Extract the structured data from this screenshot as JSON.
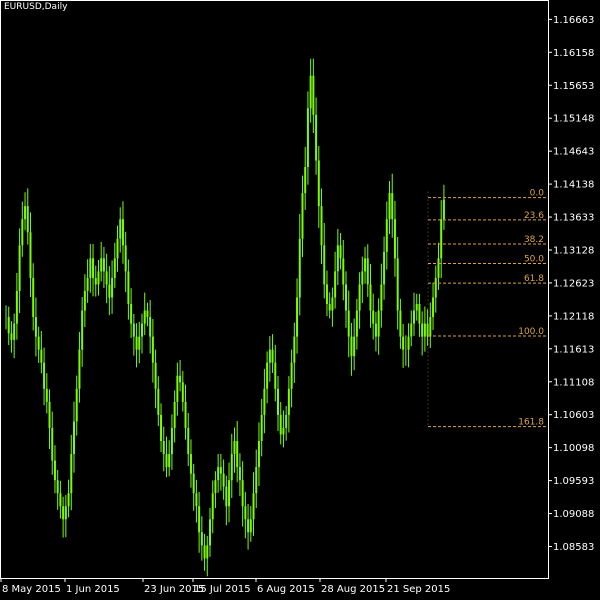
{
  "window": {
    "title": "EURUSD,Daily"
  },
  "theme": {
    "background": "#000000",
    "candle_color": "#7CFC00",
    "axis_color": "#ffffff",
    "fib_color": "#D9A441",
    "text_color": "#ffffff"
  },
  "chart_data": {
    "type": "candlestick",
    "title": "EURUSD,Daily",
    "y_ticks": [
      1.16663,
      1.16158,
      1.15653,
      1.15148,
      1.14643,
      1.14138,
      1.13633,
      1.13128,
      1.12623,
      1.12118,
      1.11613,
      1.11108,
      1.10603,
      1.10098,
      1.09593,
      1.09088,
      1.08583
    ],
    "y_tick_labels": [
      "1.16663",
      "1.16158",
      "1.15653",
      "1.15148",
      "1.14643",
      "1.14138",
      "1.13633",
      "1.13128",
      "1.12623",
      "1.12118",
      "1.11613",
      "1.11108",
      "1.10603",
      "1.10098",
      "1.09593",
      "1.09088",
      "1.08583"
    ],
    "x_tick_labels": [
      "8 May 2015",
      "1 Jun 2015",
      "23 Jun 2015",
      "15 Jul 2015",
      "6 Aug 2015",
      "28 Aug 2015",
      "21 Sep 2015"
    ],
    "ylim": [
      1.081,
      1.1696
    ],
    "fibonacci_levels": [
      {
        "label": "0.0",
        "price": 1.1393
      },
      {
        "label": "23.6",
        "price": 1.1359
      },
      {
        "label": "38.2",
        "price": 1.1322
      },
      {
        "label": "50.0",
        "price": 1.1292
      },
      {
        "label": "61.8",
        "price": 1.1262
      },
      {
        "label": "100.0",
        "price": 1.1181
      },
      {
        "label": "161.8",
        "price": 1.1042
      }
    ],
    "series": [
      {
        "close": [
          1.121,
          1.1185,
          1.1175,
          1.12,
          1.125,
          1.132,
          1.136,
          1.138,
          1.134,
          1.127,
          1.121,
          1.118,
          1.116,
          1.114,
          1.11,
          1.108,
          1.104,
          1.099,
          1.096,
          1.094,
          1.092,
          1.09,
          1.092,
          1.094,
          1.1,
          1.105,
          1.11,
          1.116,
          1.122,
          1.125,
          1.127,
          1.13,
          1.127,
          1.126,
          1.128,
          1.13,
          1.128,
          1.126,
          1.124,
          1.127,
          1.13,
          1.133,
          1.136,
          1.132,
          1.128,
          1.123,
          1.12,
          1.118,
          1.116,
          1.118,
          1.12,
          1.122,
          1.121,
          1.118,
          1.114,
          1.11,
          1.106,
          1.102,
          1.1,
          1.098,
          1.1,
          1.104,
          1.108,
          1.112,
          1.111,
          1.108,
          1.104,
          1.1,
          1.097,
          1.094,
          1.092,
          1.088,
          1.086,
          1.084,
          1.086,
          1.09,
          1.094,
          1.096,
          1.098,
          1.097,
          1.095,
          1.092,
          1.096,
          1.1,
          1.102,
          1.098,
          1.096,
          1.092,
          1.09,
          1.088,
          1.09,
          1.094,
          1.098,
          1.102,
          1.106,
          1.11,
          1.114,
          1.116,
          1.114,
          1.11,
          1.106,
          1.103,
          1.104,
          1.106,
          1.11,
          1.114,
          1.118,
          1.124,
          1.133,
          1.14,
          1.144,
          1.153,
          1.158,
          1.152,
          1.145,
          1.138,
          1.132,
          1.126,
          1.123,
          1.122,
          1.124,
          1.128,
          1.132,
          1.13,
          1.126,
          1.122,
          1.118,
          1.115,
          1.118,
          1.122,
          1.126,
          1.128,
          1.13,
          1.126,
          1.122,
          1.12,
          1.118,
          1.122,
          1.126,
          1.131,
          1.136,
          1.14,
          1.136,
          1.13,
          1.122,
          1.118,
          1.116,
          1.116,
          1.118,
          1.12,
          1.122,
          1.123,
          1.12,
          1.118,
          1.12,
          1.118,
          1.121,
          1.124,
          1.127,
          1.13,
          1.136,
          1.139
        ]
      }
    ]
  }
}
